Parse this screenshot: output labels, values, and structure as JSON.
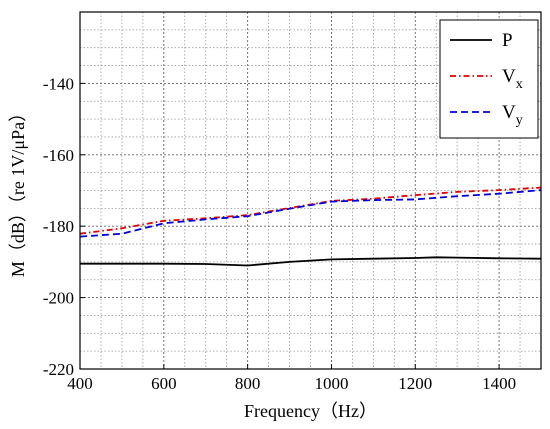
{
  "chart_data": {
    "type": "line",
    "xlabel": "Frequency（Hz）",
    "ylabel": "M（dB）（re 1V/μPa）",
    "xlim": [
      400,
      1500
    ],
    "ylim": [
      -220,
      -120
    ],
    "xticks": [
      400,
      600,
      800,
      1000,
      1200,
      1400
    ],
    "yticks": [
      -220,
      -200,
      -180,
      -160,
      -140
    ],
    "xtick_labels": [
      "400",
      "600",
      "800",
      "1000",
      "1200",
      "1400"
    ],
    "ytick_labels": [
      "-220",
      "-200",
      "-180",
      "-160",
      "-140"
    ],
    "grid": true,
    "minor_grid": true,
    "legend_position": "top-right",
    "series": [
      {
        "name": "P",
        "label_main": "P",
        "label_sub": "",
        "color": "#000000",
        "style": "solid",
        "x": [
          400,
          500,
          600,
          700,
          800,
          900,
          1000,
          1100,
          1200,
          1250,
          1300,
          1400,
          1500
        ],
        "y": [
          -190.5,
          -190.5,
          -190.5,
          -190.6,
          -191.0,
          -190.0,
          -189.3,
          -189.1,
          -188.9,
          -188.7,
          -188.8,
          -189.0,
          -189.1
        ]
      },
      {
        "name": "Vx",
        "label_main": "V",
        "label_sub": "x",
        "color": "#e00000",
        "style": "dashdot",
        "x": [
          400,
          500,
          600,
          700,
          800,
          900,
          1000,
          1100,
          1200,
          1300,
          1400,
          1500
        ],
        "y": [
          -182.1,
          -180.6,
          -178.5,
          -177.8,
          -176.9,
          -174.9,
          -172.9,
          -172.3,
          -171.3,
          -170.4,
          -169.9,
          -169.2
        ]
      },
      {
        "name": "Vy",
        "label_main": "V",
        "label_sub": "y",
        "color": "#0000dd",
        "style": "dashed",
        "x": [
          400,
          500,
          600,
          700,
          800,
          900,
          1000,
          1100,
          1200,
          1300,
          1400,
          1500
        ],
        "y": [
          -182.9,
          -182.1,
          -179.2,
          -178.1,
          -177.2,
          -175.1,
          -173.1,
          -172.7,
          -172.5,
          -171.6,
          -170.9,
          -169.9
        ]
      }
    ]
  }
}
